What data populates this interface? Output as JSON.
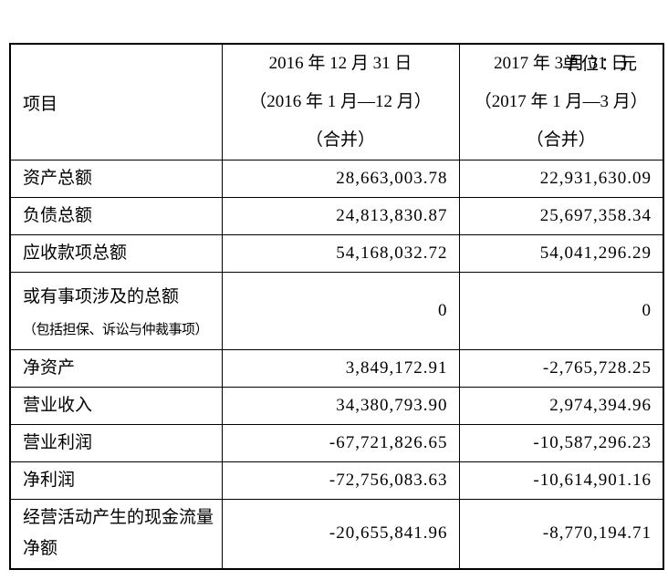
{
  "unit_label": "单位：元",
  "table": {
    "header": {
      "item_label": "项目",
      "period_2016": {
        "line1": "2016 年 12 月 31 日",
        "line2": "（2016 年 1 月—12 月）",
        "line3": "（合并）"
      },
      "period_2017": {
        "line1": "2017 年 3 月 31 日",
        "line2": "（2017 年 1 月—3 月）",
        "line3": "（合并）"
      }
    },
    "rows": [
      {
        "label": "资产总额",
        "value_2016": "28,663,003.78",
        "value_2017": "22,931,630.09"
      },
      {
        "label": "负债总额",
        "value_2016": "24,813,830.87",
        "value_2017": "25,697,358.34"
      },
      {
        "label": "应收款项总额",
        "value_2016": "54,168,032.72",
        "value_2017": "54,041,296.29"
      },
      {
        "label": "或有事项涉及的总额",
        "sublabel": "（包括担保、诉讼与仲裁事项）",
        "value_2016": "0",
        "value_2017": "0"
      },
      {
        "label": "净资产",
        "value_2016": "3,849,172.91",
        "value_2017": "-2,765,728.25"
      },
      {
        "label": "营业收入",
        "value_2016": "34,380,793.90",
        "value_2017": "2,974,394.96"
      },
      {
        "label": "营业利润",
        "value_2016": "-67,721,826.65",
        "value_2017": "-10,587,296.23"
      },
      {
        "label": "净利润",
        "value_2016": "-72,756,083.63",
        "value_2017": "-10,614,901.16"
      },
      {
        "label": "经营活动产生的现金流量净额",
        "value_2016": "-20,655,841.96",
        "value_2017": "-8,770,194.71"
      }
    ]
  }
}
